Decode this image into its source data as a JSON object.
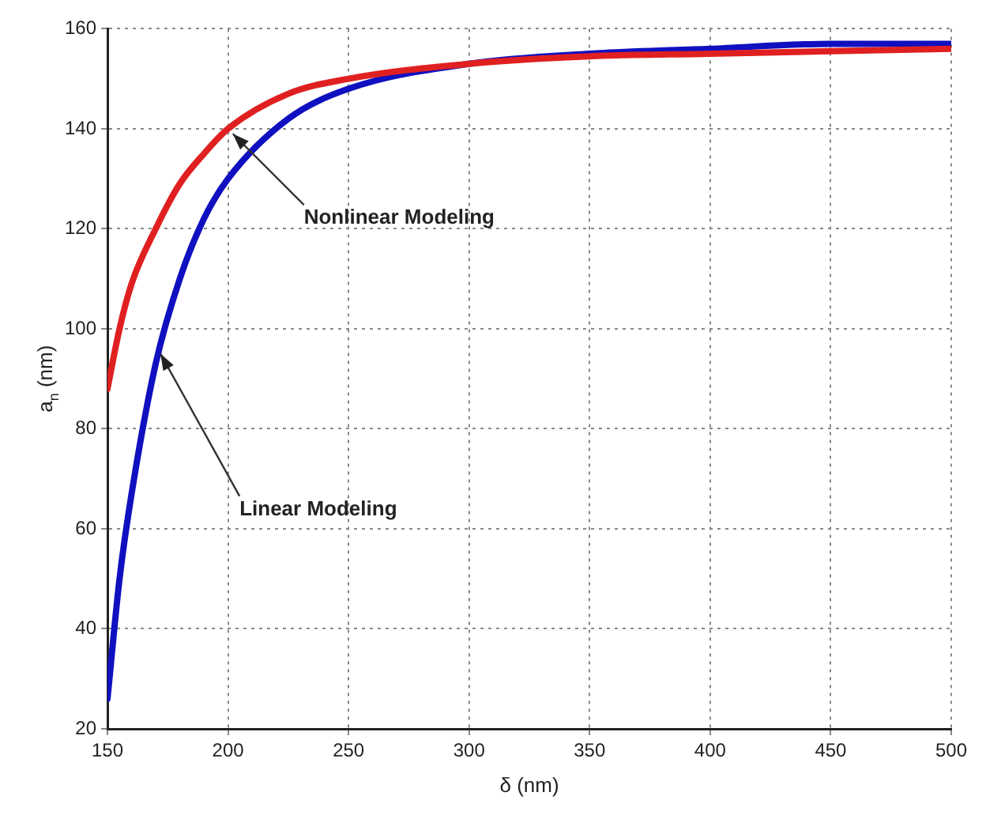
{
  "chart_data": {
    "type": "line",
    "xlabel": "δ (nm)",
    "ylabel": "a$_{n}$ (nm)",
    "xlim": [
      150,
      500
    ],
    "xticks": [
      150,
      200,
      250,
      300,
      350,
      400,
      450,
      500
    ],
    "ylim": [
      20,
      160
    ],
    "yticks": [
      20,
      40,
      60,
      80,
      100,
      120,
      140,
      160
    ],
    "grid": true,
    "legend": false,
    "marker": "none",
    "line_style": "solid",
    "series": [
      {
        "color": "#e02020",
        "x": [
          150,
          155,
          160,
          170,
          180,
          190,
          200,
          225,
          250,
          300,
          350,
          400,
          450,
          500
        ],
        "values": [
          88,
          100,
          109,
          120,
          129,
          135,
          140,
          147,
          150,
          153,
          154.5,
          155,
          155.5,
          156
        ]
      },
      {
        "color": "#1010c0",
        "x": [
          150,
          155,
          160,
          170,
          180,
          190,
          200,
          225,
          250,
          300,
          350,
          400,
          450,
          500
        ],
        "values": [
          26,
          50,
          67,
          93,
          110,
          122,
          130,
          142,
          148,
          153,
          155,
          156,
          157,
          157
        ]
      }
    ],
    "annotations": [
      {
        "text": "Nonlinear Modeling",
        "x": 202,
        "y": 139
      },
      {
        "text": "Linear Modeling",
        "x": 172,
        "y": 95
      }
    ]
  }
}
